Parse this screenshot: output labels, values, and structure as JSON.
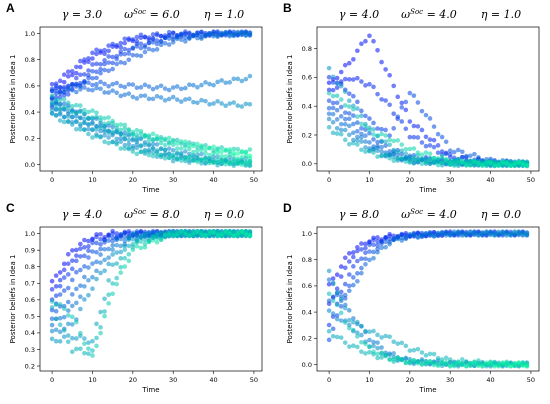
{
  "chart_data": [
    {
      "panel": "A",
      "type": "scatter",
      "params": [
        "γ = 3.0",
        "ω^Soc = 6.0",
        "η = 1.0"
      ],
      "xlabel": "Time",
      "ylabel": "Posterior beliefs in Idea 1",
      "xlim": [
        -3,
        52
      ],
      "ylim": [
        -0.05,
        1.05
      ],
      "xticks": [
        0,
        10,
        20,
        30,
        40,
        50
      ],
      "yticks": [
        0.0,
        0.2,
        0.4,
        0.6,
        0.8,
        1.0
      ],
      "ytick_labels": [
        "0.0",
        "0.2",
        "0.4",
        "0.6",
        "0.8",
        "1.0"
      ],
      "grid": false,
      "colormap": [
        "#0000ff",
        "#00fa9a"
      ],
      "agents": 30,
      "series": [
        {
          "x": [
            0,
            10,
            20,
            30,
            40,
            49
          ],
          "y": [
            0.55,
            0.82,
            0.95,
            0.99,
            1.0,
            1.0
          ]
        },
        {
          "x": [
            0,
            10,
            20,
            30,
            40,
            49
          ],
          "y": [
            0.6,
            0.85,
            0.97,
            1.0,
            1.0,
            1.0
          ]
        },
        {
          "x": [
            0,
            10,
            20,
            30,
            40,
            49
          ],
          "y": [
            0.5,
            0.75,
            0.9,
            0.98,
            1.0,
            1.0
          ]
        },
        {
          "x": [
            0,
            10,
            20,
            30,
            40,
            49
          ],
          "y": [
            0.45,
            0.7,
            0.88,
            0.97,
            0.99,
            1.0
          ]
        },
        {
          "x": [
            0,
            10,
            20,
            30,
            40,
            49
          ],
          "y": [
            0.52,
            0.66,
            0.82,
            0.94,
            0.99,
            1.0
          ]
        },
        {
          "x": [
            0,
            10,
            20,
            30,
            40,
            49
          ],
          "y": [
            0.58,
            0.62,
            0.6,
            0.58,
            0.62,
            0.66
          ]
        },
        {
          "x": [
            0,
            10,
            20,
            30,
            40,
            49
          ],
          "y": [
            0.55,
            0.58,
            0.52,
            0.5,
            0.47,
            0.45
          ]
        },
        {
          "x": [
            0,
            10,
            20,
            30,
            40,
            49
          ],
          "y": [
            0.5,
            0.35,
            0.2,
            0.1,
            0.05,
            0.03
          ]
        },
        {
          "x": [
            0,
            10,
            20,
            30,
            40,
            49
          ],
          "y": [
            0.45,
            0.3,
            0.15,
            0.06,
            0.02,
            0.01
          ]
        },
        {
          "x": [
            0,
            10,
            20,
            30,
            40,
            49
          ],
          "y": [
            0.4,
            0.25,
            0.12,
            0.04,
            0.01,
            0.0
          ]
        },
        {
          "x": [
            0,
            10,
            20,
            30,
            40,
            49
          ],
          "y": [
            0.48,
            0.32,
            0.18,
            0.08,
            0.03,
            0.01
          ]
        },
        {
          "x": [
            0,
            10,
            20,
            30,
            40,
            49
          ],
          "y": [
            0.42,
            0.28,
            0.22,
            0.18,
            0.12,
            0.1
          ]
        },
        {
          "x": [
            0,
            10,
            20,
            30,
            40,
            49
          ],
          "y": [
            0.38,
            0.22,
            0.1,
            0.05,
            0.02,
            0.01
          ]
        },
        {
          "x": [
            0,
            10,
            20,
            30,
            40,
            49
          ],
          "y": [
            0.46,
            0.36,
            0.24,
            0.14,
            0.08,
            0.05
          ]
        },
        {
          "x": [
            0,
            10,
            20,
            30,
            40,
            49
          ],
          "y": [
            0.52,
            0.4,
            0.26,
            0.18,
            0.12,
            0.08
          ]
        }
      ]
    },
    {
      "panel": "B",
      "type": "scatter",
      "params": [
        "γ = 4.0",
        "ω^Soc = 4.0",
        "η = 1.0"
      ],
      "xlabel": "Time",
      "ylabel": "Posterior beliefs in Idea 1",
      "xlim": [
        -3,
        52
      ],
      "ylim": [
        -0.05,
        0.95
      ],
      "xticks": [
        0,
        10,
        20,
        30,
        40,
        50
      ],
      "yticks": [
        0.0,
        0.2,
        0.4,
        0.6,
        0.8
      ],
      "ytick_labels": [
        "0.0",
        "0.2",
        "0.4",
        "0.6",
        "0.8"
      ],
      "grid": false,
      "colormap": [
        "#0000ff",
        "#00fa9a"
      ],
      "agents": 30,
      "series": [
        {
          "x": [
            0,
            5,
            10,
            15,
            20,
            30,
            40,
            49
          ],
          "y": [
            0.55,
            0.7,
            0.9,
            0.6,
            0.3,
            0.05,
            0.01,
            0.0
          ]
        },
        {
          "x": [
            0,
            5,
            10,
            15,
            20,
            30,
            40,
            49
          ],
          "y": [
            0.5,
            0.6,
            0.55,
            0.4,
            0.2,
            0.04,
            0.01,
            0.0
          ]
        },
        {
          "x": [
            0,
            5,
            10,
            15,
            20,
            30,
            40,
            49
          ],
          "y": [
            0.6,
            0.5,
            0.3,
            0.2,
            0.5,
            0.1,
            0.02,
            0.0
          ]
        },
        {
          "x": [
            0,
            5,
            10,
            15,
            20,
            30,
            40,
            49
          ],
          "y": [
            0.45,
            0.35,
            0.2,
            0.1,
            0.05,
            0.01,
            0.0,
            0.0
          ]
        },
        {
          "x": [
            0,
            5,
            10,
            15,
            20,
            30,
            40,
            49
          ],
          "y": [
            0.4,
            0.3,
            0.15,
            0.07,
            0.03,
            0.01,
            0.0,
            0.0
          ]
        },
        {
          "x": [
            0,
            5,
            10,
            15,
            20,
            30,
            40,
            49
          ],
          "y": [
            0.35,
            0.25,
            0.12,
            0.06,
            0.02,
            0.01,
            0.0,
            0.0
          ]
        },
        {
          "x": [
            0,
            5,
            10,
            15,
            20,
            30,
            40,
            49
          ],
          "y": [
            0.3,
            0.2,
            0.1,
            0.05,
            0.02,
            0.0,
            0.0,
            0.0
          ]
        },
        {
          "x": [
            0,
            5,
            10,
            15,
            20,
            30,
            40,
            49
          ],
          "y": [
            0.65,
            0.45,
            0.25,
            0.12,
            0.05,
            0.01,
            0.0,
            0.0
          ]
        },
        {
          "x": [
            0,
            5,
            10,
            15,
            20,
            30,
            40,
            49
          ],
          "y": [
            0.25,
            0.15,
            0.08,
            0.04,
            0.02,
            0.0,
            0.0,
            0.0
          ]
        },
        {
          "x": [
            0,
            5,
            10,
            15,
            20,
            30,
            40,
            49
          ],
          "y": [
            0.5,
            0.4,
            0.22,
            0.18,
            0.1,
            0.02,
            0.0,
            0.0
          ]
        }
      ]
    },
    {
      "panel": "C",
      "type": "scatter",
      "params": [
        "γ = 4.0",
        "ω^Soc = 8.0",
        "η = 0.0"
      ],
      "xlabel": "Time",
      "ylabel": "Posterior beliefs in Idea 1",
      "xlim": [
        -3,
        52
      ],
      "ylim": [
        0.17,
        1.04
      ],
      "xticks": [
        0,
        10,
        20,
        30,
        40,
        50
      ],
      "yticks": [
        0.2,
        0.3,
        0.4,
        0.5,
        0.6,
        0.7,
        0.8,
        0.9,
        1.0
      ],
      "ytick_labels": [
        "0.2",
        "0.3",
        "0.4",
        "0.5",
        "0.6",
        "0.7",
        "0.8",
        "0.9",
        "1.0"
      ],
      "grid": false,
      "colormap": [
        "#0000ff",
        "#00fa9a"
      ],
      "agents": 30,
      "series": [
        {
          "x": [
            0,
            5,
            10,
            15,
            20,
            30,
            40,
            49
          ],
          "y": [
            0.7,
            0.9,
            0.98,
            1.0,
            1.0,
            1.0,
            1.0,
            1.0
          ]
        },
        {
          "x": [
            0,
            5,
            10,
            15,
            20,
            30,
            40,
            49
          ],
          "y": [
            0.65,
            0.85,
            0.96,
            0.99,
            1.0,
            1.0,
            1.0,
            1.0
          ]
        },
        {
          "x": [
            0,
            5,
            10,
            15,
            20,
            30,
            40,
            49
          ],
          "y": [
            0.6,
            0.8,
            0.93,
            0.98,
            1.0,
            1.0,
            1.0,
            1.0
          ]
        },
        {
          "x": [
            0,
            5,
            10,
            15,
            20,
            30,
            40,
            49
          ],
          "y": [
            0.55,
            0.72,
            0.88,
            0.97,
            0.99,
            1.0,
            1.0,
            1.0
          ]
        },
        {
          "x": [
            0,
            5,
            10,
            15,
            20,
            30,
            40,
            49
          ],
          "y": [
            0.5,
            0.62,
            0.82,
            0.94,
            0.99,
            1.0,
            1.0,
            1.0
          ]
        },
        {
          "x": [
            0,
            5,
            10,
            15,
            20,
            30,
            40,
            49
          ],
          "y": [
            0.45,
            0.55,
            0.75,
            0.9,
            0.98,
            1.0,
            1.0,
            1.0
          ]
        },
        {
          "x": [
            0,
            5,
            10,
            15,
            20,
            30,
            40,
            49
          ],
          "y": [
            0.4,
            0.45,
            0.68,
            0.86,
            0.97,
            1.0,
            1.0,
            1.0
          ]
        },
        {
          "x": [
            0,
            5,
            10,
            15,
            20,
            30,
            40,
            49
          ],
          "y": [
            0.35,
            0.38,
            0.35,
            0.8,
            0.95,
            1.0,
            1.0,
            1.0
          ]
        },
        {
          "x": [
            0,
            5,
            10,
            15,
            20,
            30,
            40,
            49
          ],
          "y": [
            0.55,
            0.3,
            0.28,
            0.7,
            0.93,
            1.0,
            1.0,
            1.0
          ]
        },
        {
          "x": [
            0,
            5,
            10,
            15,
            20,
            30,
            40,
            49
          ],
          "y": [
            0.6,
            0.5,
            0.25,
            0.65,
            0.9,
            1.0,
            1.0,
            1.0
          ]
        }
      ]
    },
    {
      "panel": "D",
      "type": "scatter",
      "params": [
        "γ = 8.0",
        "ω^Soc = 4.0",
        "η = 0.0"
      ],
      "xlabel": "Time",
      "ylabel": "Posterior beliefs in Idea 1",
      "xlim": [
        -3,
        52
      ],
      "ylim": [
        -0.05,
        1.05
      ],
      "xticks": [
        0,
        10,
        20,
        30,
        40,
        50
      ],
      "yticks": [
        0.0,
        0.2,
        0.4,
        0.6,
        0.8,
        1.0
      ],
      "ytick_labels": [
        "0.0",
        "0.2",
        "0.4",
        "0.6",
        "0.8",
        "1.0"
      ],
      "grid": false,
      "colormap": [
        "#0000ff",
        "#00fa9a"
      ],
      "agents": 30,
      "series": [
        {
          "x": [
            0,
            5,
            10,
            15,
            20,
            30,
            40,
            49
          ],
          "y": [
            0.6,
            0.85,
            0.95,
            0.98,
            0.99,
            1.0,
            1.0,
            1.0
          ]
        },
        {
          "x": [
            0,
            5,
            10,
            15,
            20,
            30,
            40,
            49
          ],
          "y": [
            0.45,
            0.8,
            0.93,
            0.97,
            0.99,
            1.0,
            1.0,
            1.0
          ]
        },
        {
          "x": [
            0,
            5,
            10,
            15,
            20,
            30,
            40,
            49
          ],
          "y": [
            0.3,
            0.7,
            0.9,
            0.96,
            0.99,
            1.0,
            1.0,
            1.0
          ]
        },
        {
          "x": [
            0,
            5,
            10,
            15,
            20,
            30,
            40,
            49
          ],
          "y": [
            0.2,
            0.6,
            0.85,
            0.95,
            0.98,
            1.0,
            1.0,
            1.0
          ]
        },
        {
          "x": [
            0,
            5,
            10,
            15,
            20,
            30,
            40,
            49
          ],
          "y": [
            0.5,
            0.55,
            0.8,
            0.93,
            0.98,
            1.0,
            1.0,
            1.0
          ]
        },
        {
          "x": [
            0,
            5,
            10,
            15,
            20,
            30,
            40,
            49
          ],
          "y": [
            0.65,
            0.4,
            0.2,
            0.08,
            0.03,
            0.01,
            0.0,
            0.0
          ]
        },
        {
          "x": [
            0,
            5,
            10,
            15,
            20,
            30,
            40,
            49
          ],
          "y": [
            0.4,
            0.3,
            0.15,
            0.06,
            0.02,
            0.0,
            0.0,
            0.0
          ]
        },
        {
          "x": [
            0,
            5,
            10,
            15,
            20,
            30,
            40,
            49
          ],
          "y": [
            0.7,
            0.35,
            0.25,
            0.2,
            0.12,
            0.03,
            0.01,
            0.0
          ]
        },
        {
          "x": [
            0,
            5,
            10,
            15,
            20,
            30,
            40,
            49
          ],
          "y": [
            0.25,
            0.15,
            0.08,
            0.04,
            0.02,
            0.0,
            0.0,
            0.0
          ]
        },
        {
          "x": [
            0,
            5,
            10,
            15,
            20,
            30,
            40,
            49
          ],
          "y": [
            0.55,
            0.28,
            0.12,
            0.05,
            0.02,
            0.0,
            0.0,
            0.0
          ]
        }
      ]
    }
  ]
}
